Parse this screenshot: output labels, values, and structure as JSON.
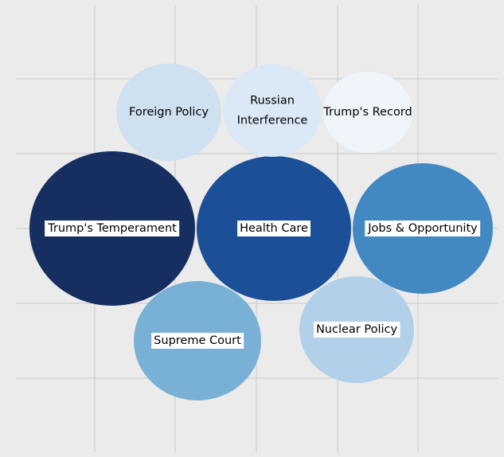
{
  "colors": {
    "background": "#ebebeb",
    "grid": "#c8c8c8",
    "label_box": "#ffffff",
    "label_text": "#000000"
  },
  "chart_data": {
    "type": "bubble",
    "title": "",
    "xlabel": "",
    "ylabel": "",
    "grid": true,
    "legend": "none",
    "bubbles": [
      {
        "label": "Trump's Temperament",
        "lines": [
          "Trump's Temperament"
        ],
        "boxed": true,
        "color": "#172f60",
        "size": 10,
        "x": 0.85,
        "y": 2.0
      },
      {
        "label": "Health Care",
        "lines": [
          "Health Care"
        ],
        "boxed": true,
        "color": "#1b4f98",
        "size": 9,
        "x": 3.2,
        "y": 2.0
      },
      {
        "label": "Jobs & Opportunity",
        "lines": [
          "Jobs & Opportunity"
        ],
        "boxed": true,
        "color": "#4289c3",
        "size": 8,
        "x": 5.2,
        "y": 2.0
      },
      {
        "label": "Supreme Court",
        "lines": [
          "Supreme Court"
        ],
        "boxed": true,
        "color": "#78b0d6",
        "size": 7,
        "x": 1.75,
        "y": 3.5
      },
      {
        "label": "Nuclear Policy",
        "lines": [
          "Nuclear Policy"
        ],
        "boxed": true,
        "color": "#b2d0e9",
        "size": 6,
        "x": 4.2,
        "y": 3.3
      },
      {
        "label": "Foreign Policy",
        "lines": [
          "Foreign Policy"
        ],
        "boxed": false,
        "color": "#cfe0f1",
        "size": 5,
        "x": 1.2,
        "y": 0.5
      },
      {
        "label": "Russian Interference",
        "lines": [
          "Russian",
          "Interference"
        ],
        "boxed": false,
        "color": "#dbe8f5",
        "size": 4,
        "x": 3.2,
        "y": 0.5
      },
      {
        "label": "Trump's Record",
        "lines": [
          "Trump's Record"
        ],
        "boxed": false,
        "color": "#f0f5fc",
        "size": 3,
        "x": 4.6,
        "y": 0.5
      }
    ]
  }
}
